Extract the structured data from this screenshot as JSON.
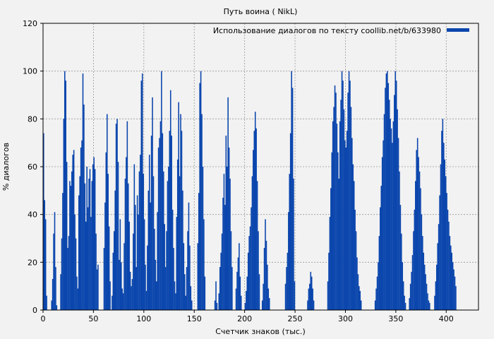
{
  "chart_data": {
    "type": "bar",
    "title": "Путь воина ( NikL)",
    "xlabel": "Счетчик знаков (тыс.)",
    "ylabel": "% диалогов",
    "xlim": [
      0,
      432
    ],
    "ylim": [
      0,
      120
    ],
    "xticks": [
      "0",
      "50",
      "100",
      "150",
      "200",
      "250",
      "300",
      "350",
      "400"
    ],
    "yticks": [
      "0",
      "20",
      "40",
      "60",
      "80",
      "100",
      "120"
    ],
    "grid": true,
    "legend_position": "top-right",
    "colors": {
      "series": "#0b46ad",
      "background": "#f2f2f2",
      "grid": "#999999"
    },
    "series": [
      {
        "name": "Использование диалогов по тексту coollib.net/b/633980",
        "x_start": 0.5,
        "x_step": 1,
        "values": [
          74,
          46,
          38,
          6,
          0,
          0,
          0,
          0,
          4,
          13,
          32,
          41,
          18,
          2,
          0,
          0,
          0,
          15,
          30,
          49,
          80,
          100,
          96,
          62,
          26,
          31,
          54,
          52,
          58,
          65,
          67,
          40,
          30,
          14,
          9,
          48,
          56,
          68,
          71,
          99,
          86,
          53,
          37,
          60,
          43,
          55,
          59,
          39,
          54,
          61,
          64,
          59,
          32,
          17,
          19,
          0,
          0,
          0,
          0,
          0,
          26,
          45,
          66,
          82,
          57,
          35,
          12,
          0,
          6,
          24,
          33,
          50,
          78,
          80,
          62,
          21,
          38,
          20,
          9,
          7,
          28,
          55,
          64,
          79,
          53,
          37,
          16,
          10,
          13,
          32,
          61,
          44,
          18,
          48,
          40,
          58,
          65,
          96,
          99,
          57,
          38,
          19,
          8,
          27,
          50,
          65,
          45,
          73,
          89,
          56,
          34,
          21,
          12,
          41,
          68,
          72,
          79,
          100,
          74,
          58,
          36,
          18,
          33,
          54,
          60,
          75,
          92,
          73,
          42,
          26,
          12,
          7,
          39,
          63,
          87,
          56,
          82,
          75,
          50,
          28,
          15,
          6,
          18,
          33,
          45,
          27,
          10,
          4,
          0,
          0,
          0,
          0,
          0,
          28,
          49,
          95,
          100,
          82,
          60,
          38,
          14,
          0,
          0,
          0,
          0,
          0,
          0,
          0,
          0,
          0,
          4,
          12,
          3,
          0,
          7,
          18,
          24,
          32,
          47,
          57,
          44,
          73,
          60,
          89,
          68,
          55,
          33,
          18,
          0,
          0,
          0,
          9,
          16,
          22,
          28,
          14,
          6,
          0,
          0,
          0,
          3,
          8,
          14,
          24,
          31,
          35,
          43,
          56,
          67,
          75,
          83,
          76,
          54,
          33,
          15,
          0,
          0,
          4,
          11,
          26,
          38,
          29,
          19,
          9,
          5,
          0,
          0,
          0,
          0,
          0,
          0,
          0,
          0,
          0,
          0,
          0,
          0,
          0,
          0,
          0,
          11,
          18,
          24,
          41,
          57,
          74,
          100,
          93,
          55,
          12,
          0,
          0,
          0,
          0,
          0,
          0,
          0,
          0,
          0,
          0,
          0,
          0,
          4,
          9,
          11,
          16,
          14,
          9,
          4,
          0,
          0,
          0,
          0,
          0,
          0,
          0,
          0,
          0,
          0,
          0,
          0,
          0,
          12,
          24,
          39,
          51,
          66,
          79,
          85,
          94,
          91,
          78,
          66,
          55,
          79,
          88,
          100,
          96,
          84,
          71,
          68,
          75,
          91,
          100,
          96,
          85,
          72,
          61,
          54,
          42,
          33,
          22,
          15,
          10,
          8,
          4,
          0,
          0,
          0,
          0,
          0,
          0,
          0,
          0,
          0,
          0,
          0,
          0,
          0,
          4,
          9,
          14,
          20,
          31,
          43,
          52,
          64,
          71,
          82,
          93,
          99,
          100,
          95,
          88,
          80,
          76,
          70,
          79,
          90,
          100,
          96,
          84,
          72,
          58,
          44,
          32,
          20,
          12,
          6,
          3,
          0,
          0,
          0,
          5,
          11,
          16,
          23,
          33,
          42,
          54,
          67,
          72,
          64,
          58,
          51,
          40,
          31,
          24,
          19,
          15,
          11,
          7,
          4,
          3,
          0,
          0,
          0,
          0,
          6,
          12,
          19,
          28,
          36,
          48,
          61,
          75,
          80,
          70,
          63,
          56,
          49,
          42,
          37,
          31,
          27,
          24,
          20,
          17,
          14,
          10
        ]
      }
    ]
  }
}
